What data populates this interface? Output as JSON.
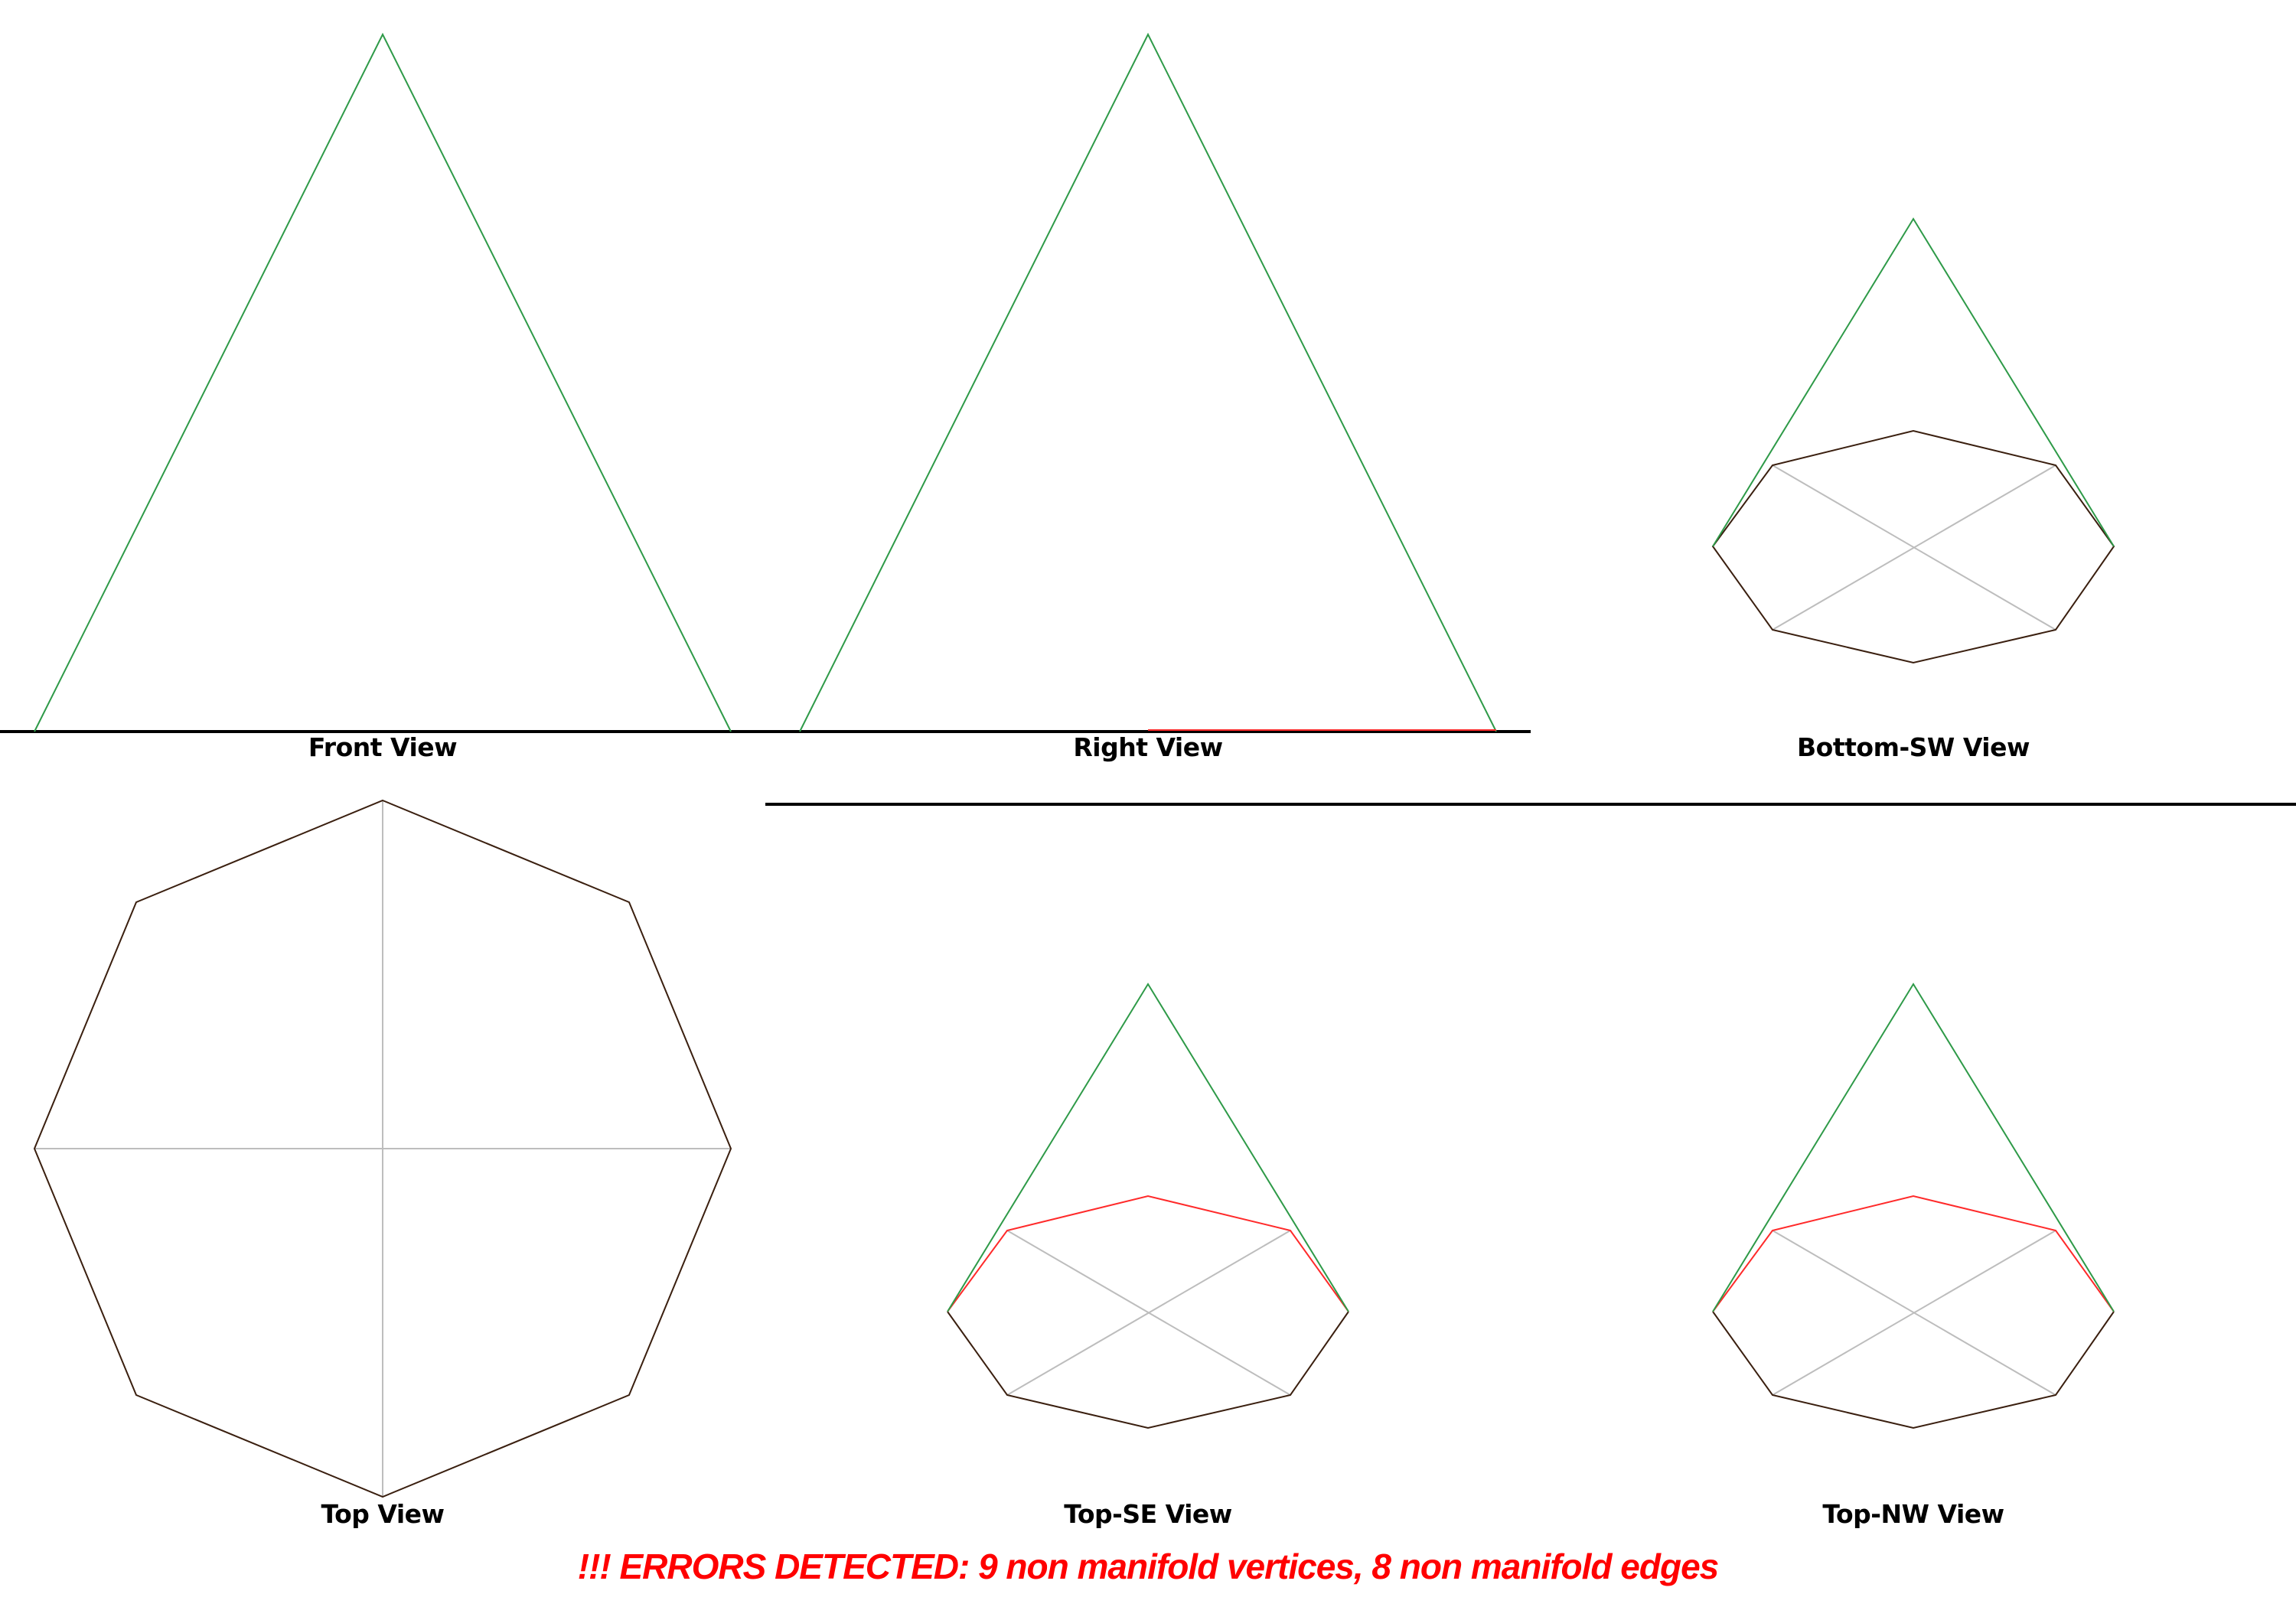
{
  "views": [
    {
      "id": "front",
      "label": "Front View"
    },
    {
      "id": "right",
      "label": "Right View"
    },
    {
      "id": "bottom-sw",
      "label": "Bottom-SW View"
    },
    {
      "id": "top",
      "label": "Top View"
    },
    {
      "id": "top-se",
      "label": "Top-SE View"
    },
    {
      "id": "top-nw",
      "label": "Top-NW View"
    }
  ],
  "error_banner": "!!! ERRORS DETECTED: 9 non manifold vertices, 8 non manifold edges",
  "colors": {
    "slant_edge": "#2e9a48",
    "base_edge": "#3a1f0f",
    "non_manifold_edge": "#ff2a2a",
    "hidden_edge": "#bdbdbd",
    "divider": "#000000",
    "error_text": "#ff0000"
  }
}
